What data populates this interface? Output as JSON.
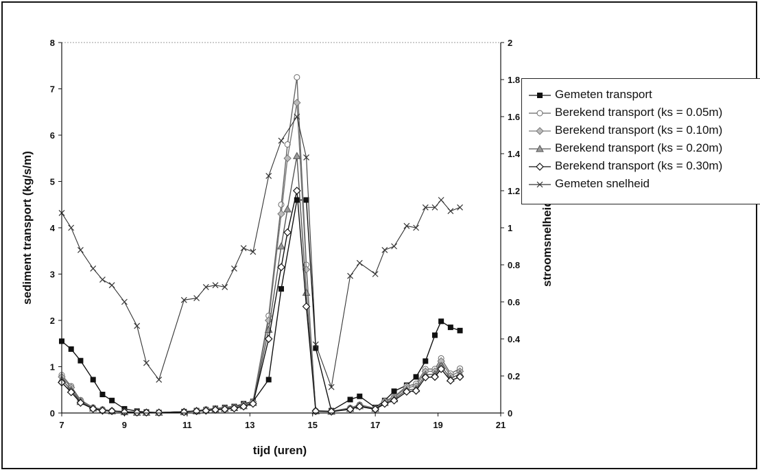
{
  "chart_data": {
    "type": "line",
    "xlabel": "tijd (uren)",
    "ylabel": "sediment transport (kg/s/m)",
    "y2label": "stroomsnelheid (m/s)",
    "xlim": [
      7,
      21
    ],
    "xticks": [
      7,
      9,
      11,
      13,
      15,
      17,
      19,
      21
    ],
    "ylim": [
      0,
      8
    ],
    "yticks": [
      0,
      1,
      2,
      3,
      4,
      5,
      6,
      7,
      8
    ],
    "y2lim": [
      0,
      2
    ],
    "y2ticks": [
      0,
      0.2,
      0.4,
      0.6,
      0.8,
      1,
      1.2,
      1.4,
      1.6,
      1.8,
      2
    ],
    "legend_position": "right",
    "series": [
      {
        "name": "Gemeten transport",
        "axis": "left",
        "marker": "filled-square",
        "color": "#111111",
        "x": [
          7.0,
          7.3,
          7.6,
          8.0,
          8.3,
          8.6,
          9.0,
          9.4,
          9.7,
          10.1,
          10.9,
          11.3,
          11.6,
          11.9,
          12.2,
          12.5,
          12.8,
          13.1,
          13.6,
          14.0,
          14.5,
          14.8,
          15.1,
          15.6,
          16.2,
          16.5,
          17.0,
          17.3,
          17.6,
          18.0,
          18.3,
          18.6,
          18.9,
          19.1,
          19.4,
          19.7
        ],
        "y": [
          1.55,
          1.38,
          1.13,
          0.72,
          0.4,
          0.27,
          0.09,
          0.04,
          0.02,
          0.01,
          0.03,
          0.05,
          0.07,
          0.1,
          0.12,
          0.14,
          0.2,
          0.25,
          0.72,
          2.68,
          4.6,
          4.6,
          1.4,
          0.05,
          0.29,
          0.36,
          0.12,
          0.27,
          0.47,
          0.6,
          0.78,
          1.12,
          1.68,
          1.98,
          1.85,
          1.78
        ]
      },
      {
        "name": "Berekend transport (ks = 0.05m)",
        "axis": "left",
        "marker": "open-circle",
        "color": "#666666",
        "x": [
          7.0,
          7.3,
          7.6,
          8.0,
          8.3,
          8.6,
          9.0,
          9.4,
          9.7,
          10.1,
          10.9,
          11.3,
          11.6,
          11.9,
          12.2,
          12.5,
          12.8,
          13.1,
          13.6,
          14.0,
          14.2,
          14.5,
          14.8,
          15.1,
          15.6,
          16.2,
          16.5,
          17.0,
          17.3,
          17.6,
          18.0,
          18.3,
          18.6,
          18.9,
          19.1,
          19.4,
          19.7
        ],
        "y": [
          0.82,
          0.58,
          0.28,
          0.12,
          0.08,
          0.05,
          0.03,
          0.02,
          0.01,
          0.01,
          0.03,
          0.05,
          0.08,
          0.1,
          0.11,
          0.13,
          0.18,
          0.25,
          2.1,
          4.5,
          5.8,
          7.25,
          3.2,
          0.05,
          0.04,
          0.11,
          0.18,
          0.1,
          0.26,
          0.35,
          0.58,
          0.63,
          0.95,
          0.95,
          1.18,
          0.85,
          0.96
        ]
      },
      {
        "name": "Berekend transport (ks = 0.10m)",
        "axis": "left",
        "marker": "shaded-diamond",
        "color": "#777777",
        "x": [
          7.0,
          7.3,
          7.6,
          8.0,
          8.3,
          8.6,
          9.0,
          9.4,
          9.7,
          10.1,
          10.9,
          11.3,
          11.6,
          11.9,
          12.2,
          12.5,
          12.8,
          13.1,
          13.6,
          14.0,
          14.2,
          14.5,
          14.8,
          15.1,
          15.6,
          16.2,
          16.5,
          17.0,
          17.3,
          17.6,
          18.0,
          18.3,
          18.6,
          18.9,
          19.1,
          19.4,
          19.7
        ],
        "y": [
          0.78,
          0.55,
          0.26,
          0.11,
          0.07,
          0.05,
          0.03,
          0.02,
          0.01,
          0.01,
          0.03,
          0.05,
          0.07,
          0.09,
          0.1,
          0.12,
          0.17,
          0.24,
          2.0,
          4.3,
          5.5,
          6.7,
          3.1,
          0.05,
          0.04,
          0.1,
          0.17,
          0.1,
          0.25,
          0.33,
          0.55,
          0.58,
          0.9,
          0.9,
          1.12,
          0.8,
          0.9
        ]
      },
      {
        "name": "Berekend transport (ks = 0.20m)",
        "axis": "left",
        "marker": "shaded-triangle",
        "color": "#555555",
        "x": [
          7.0,
          7.3,
          7.6,
          8.0,
          8.3,
          8.6,
          9.0,
          9.4,
          9.7,
          10.1,
          10.9,
          11.3,
          11.6,
          11.9,
          12.2,
          12.5,
          12.8,
          13.1,
          13.6,
          14.0,
          14.2,
          14.5,
          14.8,
          15.1,
          15.6,
          16.2,
          16.5,
          17.0,
          17.3,
          17.6,
          18.0,
          18.3,
          18.6,
          18.9,
          19.1,
          19.4,
          19.7
        ],
        "y": [
          0.72,
          0.5,
          0.24,
          0.1,
          0.06,
          0.04,
          0.02,
          0.01,
          0.01,
          0.01,
          0.02,
          0.04,
          0.06,
          0.08,
          0.09,
          0.11,
          0.15,
          0.22,
          1.8,
          3.6,
          4.4,
          5.55,
          2.6,
          0.04,
          0.03,
          0.09,
          0.15,
          0.09,
          0.22,
          0.3,
          0.5,
          0.52,
          0.83,
          0.84,
          1.02,
          0.74,
          0.85
        ]
      },
      {
        "name": "Berekend transport (ks = 0.30m)",
        "axis": "left",
        "marker": "open-diamond",
        "color": "#111111",
        "x": [
          7.0,
          7.3,
          7.6,
          8.0,
          8.3,
          8.6,
          9.0,
          9.4,
          9.7,
          10.1,
          10.9,
          11.3,
          11.6,
          11.9,
          12.2,
          12.5,
          12.8,
          13.1,
          13.6,
          14.0,
          14.2,
          14.5,
          14.8,
          15.1,
          15.6,
          16.2,
          16.5,
          17.0,
          17.3,
          17.6,
          18.0,
          18.3,
          18.6,
          18.9,
          19.1,
          19.4,
          19.7
        ],
        "y": [
          0.66,
          0.45,
          0.22,
          0.09,
          0.05,
          0.04,
          0.02,
          0.01,
          0.01,
          0.01,
          0.02,
          0.04,
          0.05,
          0.07,
          0.08,
          0.1,
          0.14,
          0.2,
          1.6,
          3.15,
          3.9,
          4.8,
          2.3,
          0.04,
          0.03,
          0.08,
          0.14,
          0.08,
          0.2,
          0.27,
          0.46,
          0.48,
          0.77,
          0.78,
          0.95,
          0.7,
          0.78
        ]
      },
      {
        "name": "Gemeten snelheid",
        "axis": "right",
        "marker": "x",
        "color": "#333333",
        "x": [
          7.0,
          7.3,
          7.6,
          8.0,
          8.3,
          8.6,
          9.0,
          9.4,
          9.7,
          10.1,
          10.9,
          11.3,
          11.6,
          11.9,
          12.2,
          12.5,
          12.8,
          13.1,
          13.6,
          14.0,
          14.5,
          14.8,
          15.1,
          15.6,
          16.2,
          16.5,
          17.0,
          17.3,
          17.6,
          18.0,
          18.3,
          18.6,
          18.9,
          19.1,
          19.4,
          19.7
        ],
        "y": [
          1.08,
          1.0,
          0.88,
          0.78,
          0.72,
          0.69,
          0.6,
          0.47,
          0.27,
          0.18,
          0.61,
          0.62,
          0.68,
          0.69,
          0.68,
          0.78,
          0.89,
          0.87,
          1.28,
          1.47,
          1.6,
          1.38,
          0.37,
          0.14,
          0.74,
          0.81,
          0.75,
          0.88,
          0.9,
          1.01,
          1.0,
          1.11,
          1.11,
          1.15,
          1.09,
          1.11
        ]
      }
    ]
  }
}
